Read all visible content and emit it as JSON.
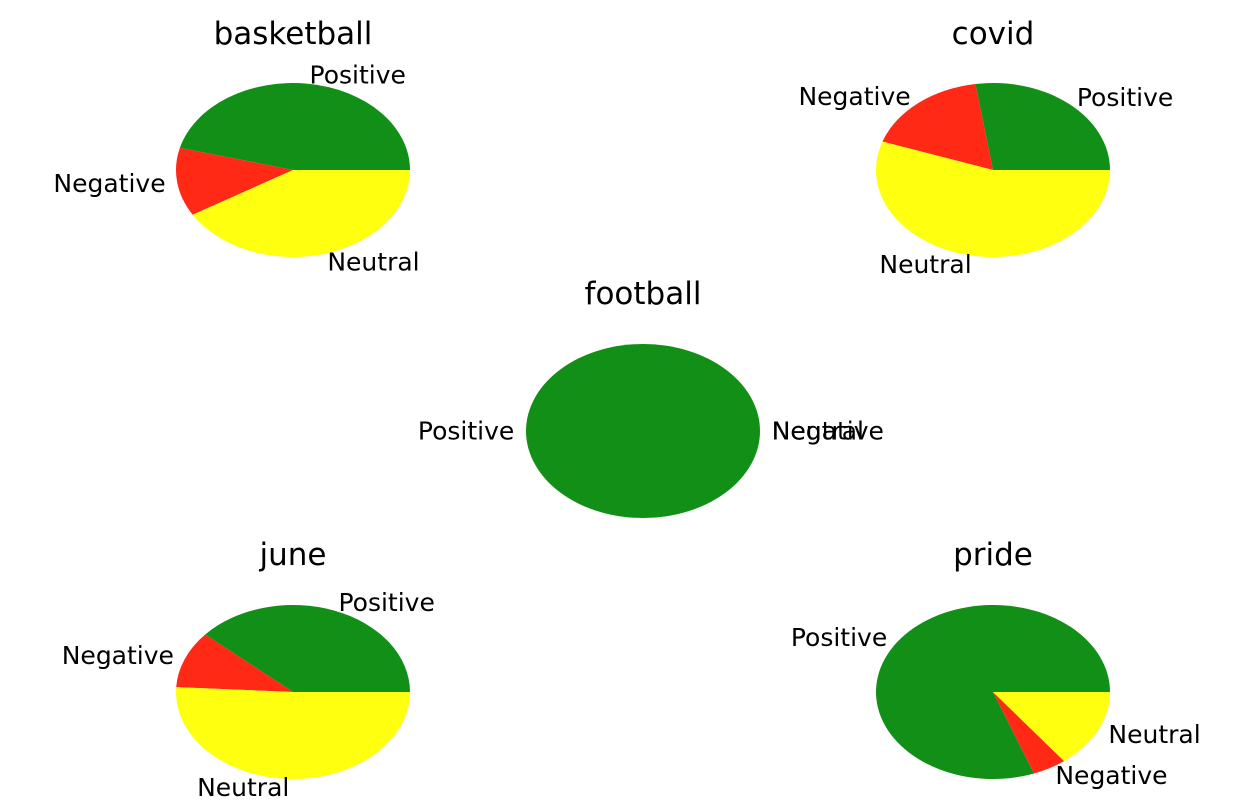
{
  "colors": {
    "Positive": "#118f16",
    "Negative": "#ff2916",
    "Neutral": "#ffff10"
  },
  "chart_data": [
    {
      "type": "pie",
      "title": "basketball",
      "categories": [
        "Positive",
        "Negative",
        "Neutral"
      ],
      "values": [
        45.9,
        12.7,
        41.4
      ]
    },
    {
      "type": "pie",
      "title": "covid",
      "categories": [
        "Positive",
        "Negative",
        "Neutral"
      ],
      "values": [
        27.4,
        17.3,
        55.3
      ]
    },
    {
      "type": "pie",
      "title": "football",
      "categories": [
        "Positive",
        "Negative",
        "Neutral"
      ],
      "values": [
        100,
        0,
        0
      ]
    },
    {
      "type": "pie",
      "title": "june",
      "categories": [
        "Positive",
        "Negative",
        "Neutral"
      ],
      "values": [
        38.5,
        10.6,
        50.9
      ]
    },
    {
      "type": "pie",
      "title": "pride",
      "categories": [
        "Positive",
        "Negative",
        "Neutral"
      ],
      "values": [
        80.7,
        4.7,
        14.6
      ]
    }
  ]
}
